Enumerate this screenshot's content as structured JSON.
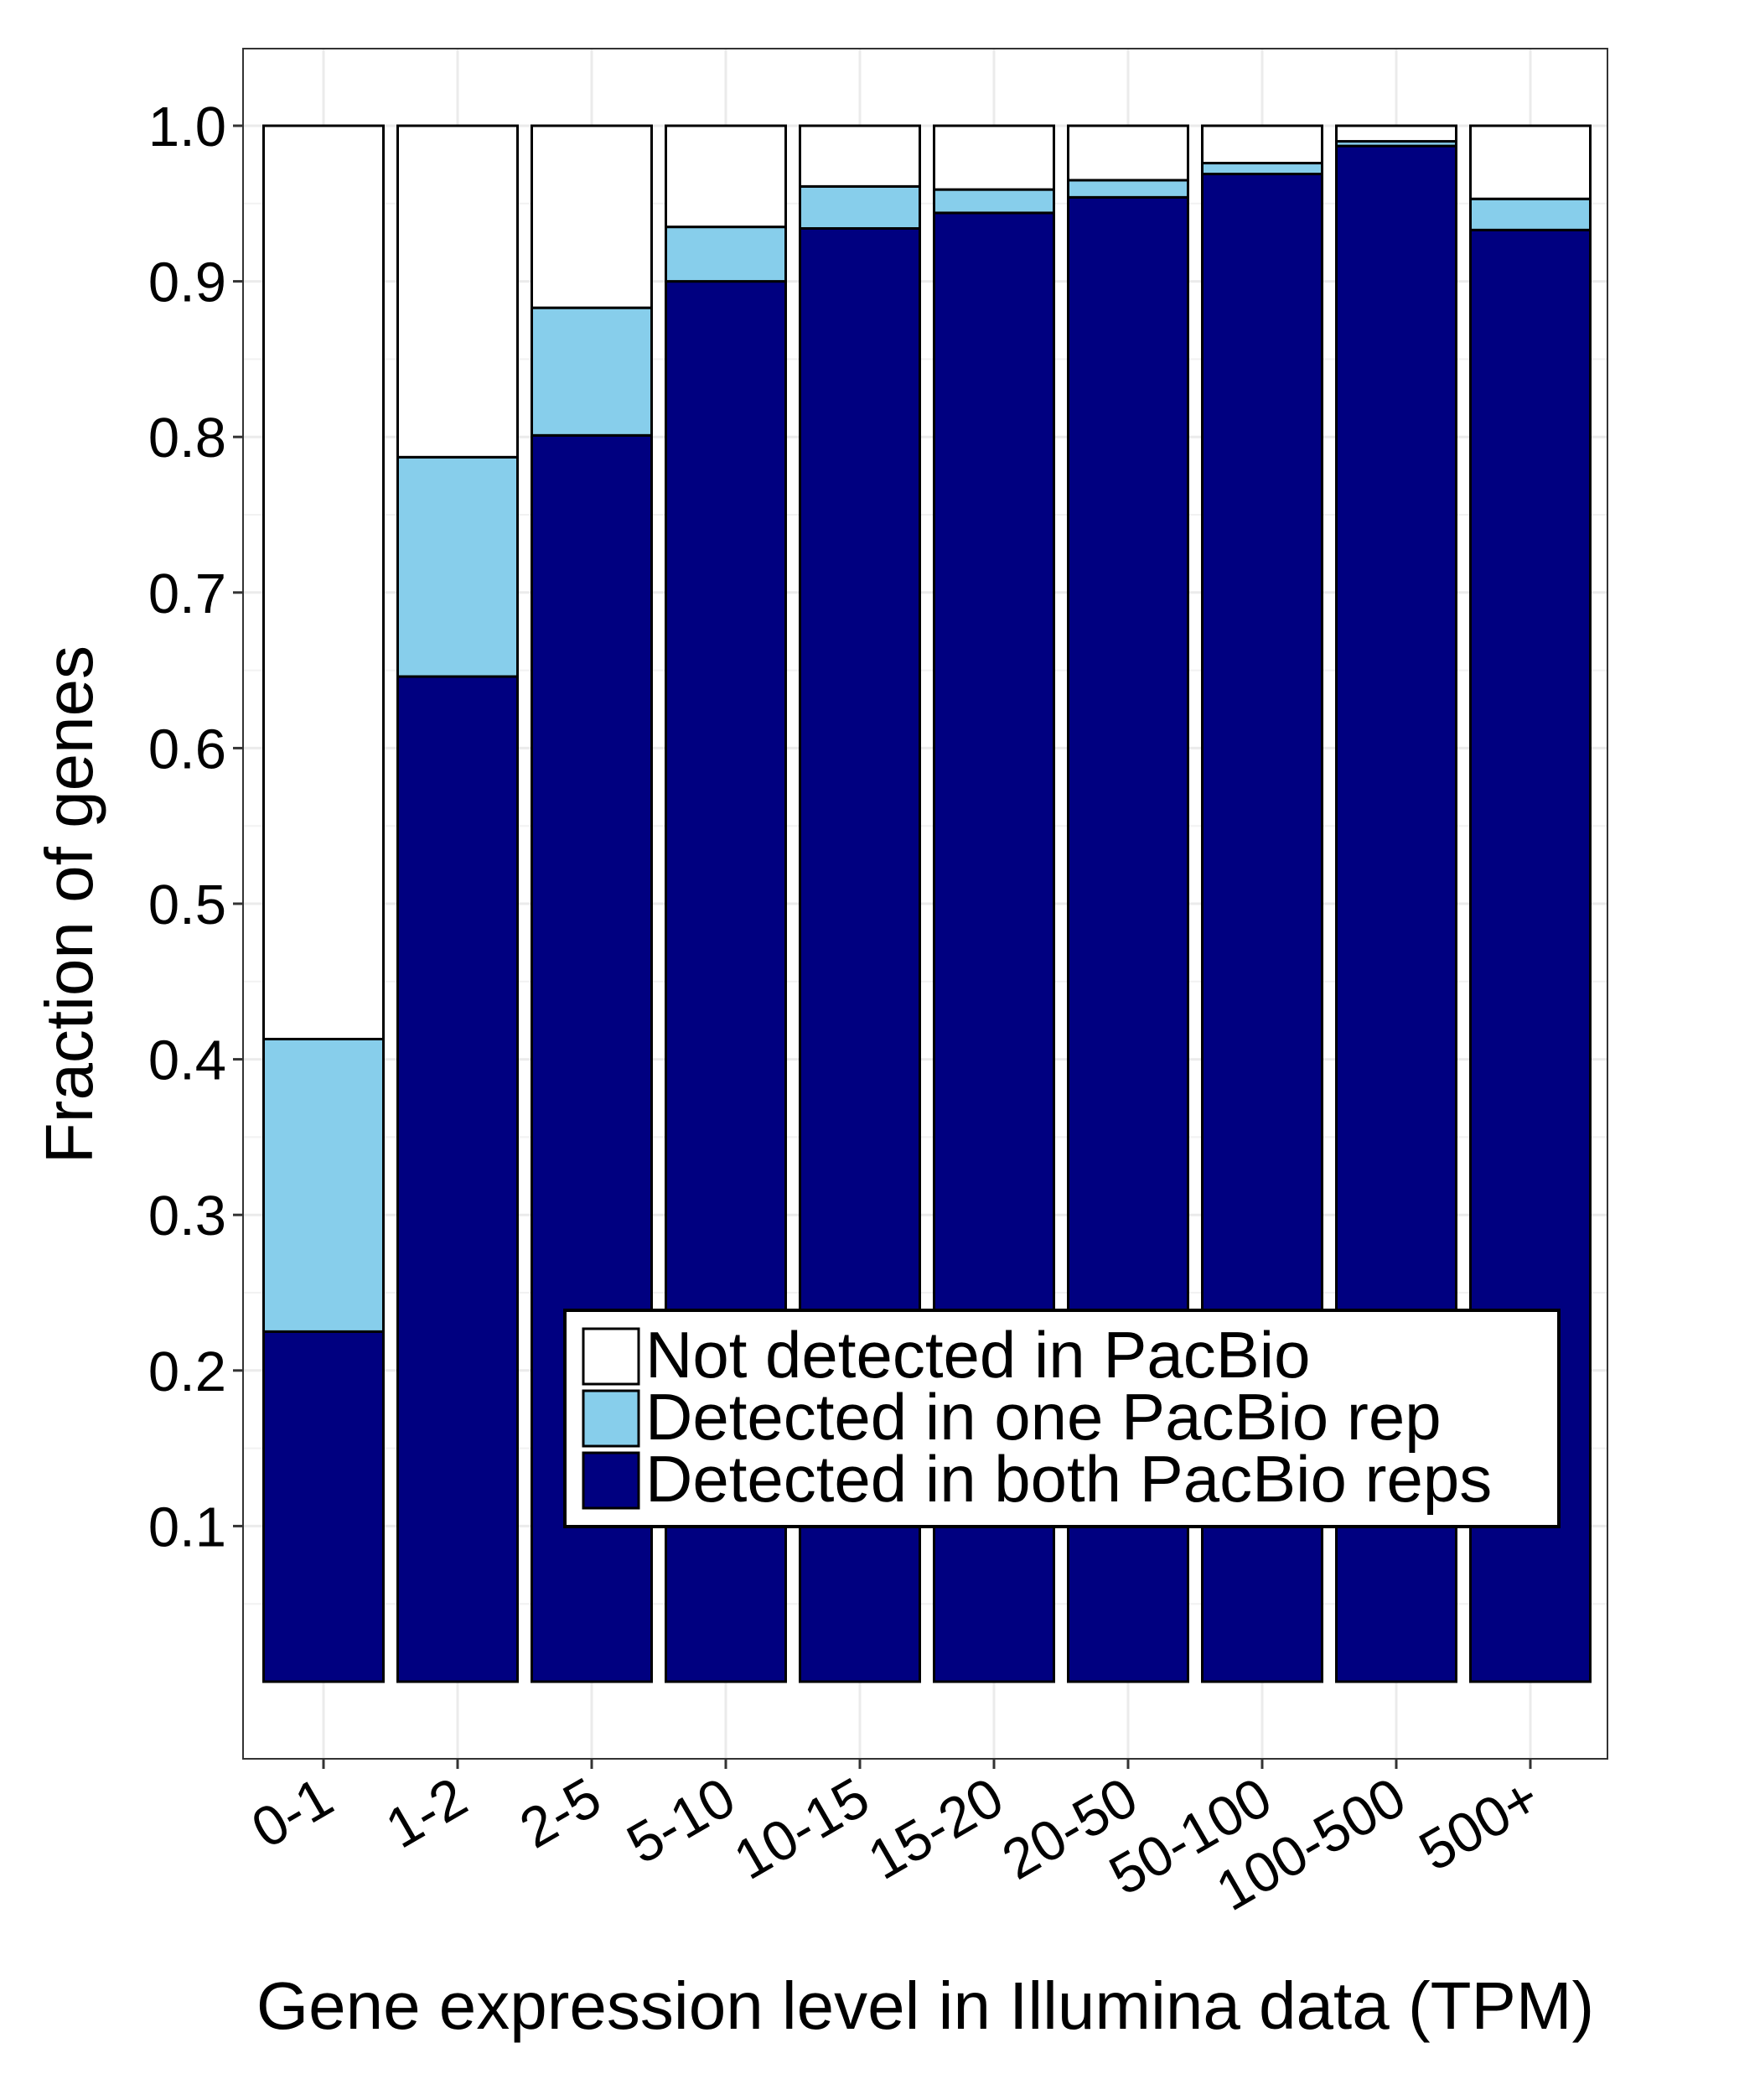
{
  "chart_data": {
    "type": "bar",
    "stacked": true,
    "xlabel": "Gene expression level in Illumina data (TPM)",
    "ylabel": "Fraction of genes",
    "ylim": [
      0,
      1.05
    ],
    "yticks": [
      "0.1",
      "0.2",
      "0.3",
      "0.4",
      "0.5",
      "0.6",
      "0.7",
      "0.8",
      "0.9",
      "1.0"
    ],
    "grid": true,
    "legend_position": "bottom-right",
    "categories": [
      "0-1",
      "1-2",
      "2-5",
      "5-10",
      "10-15",
      "15-20",
      "20-50",
      "50-100",
      "100-500",
      "500+"
    ],
    "series": [
      {
        "name": "Detected in both PacBio reps",
        "color": "#000080",
        "values": [
          0.225,
          0.646,
          0.801,
          0.9,
          0.934,
          0.944,
          0.954,
          0.969,
          0.987,
          0.933
        ]
      },
      {
        "name": "Detected in one PacBio rep",
        "color": "#87CEEB",
        "values": [
          0.188,
          0.141,
          0.082,
          0.035,
          0.027,
          0.015,
          0.011,
          0.007,
          0.003,
          0.02
        ]
      },
      {
        "name": "Not detected in PacBio",
        "color": "#FFFFFF",
        "values": [
          0.587,
          0.213,
          0.117,
          0.065,
          0.039,
          0.041,
          0.035,
          0.024,
          0.01,
          0.047
        ]
      }
    ],
    "legend_order": [
      "Not detected in PacBio",
      "Detected in one PacBio rep",
      "Detected in both PacBio reps"
    ]
  }
}
